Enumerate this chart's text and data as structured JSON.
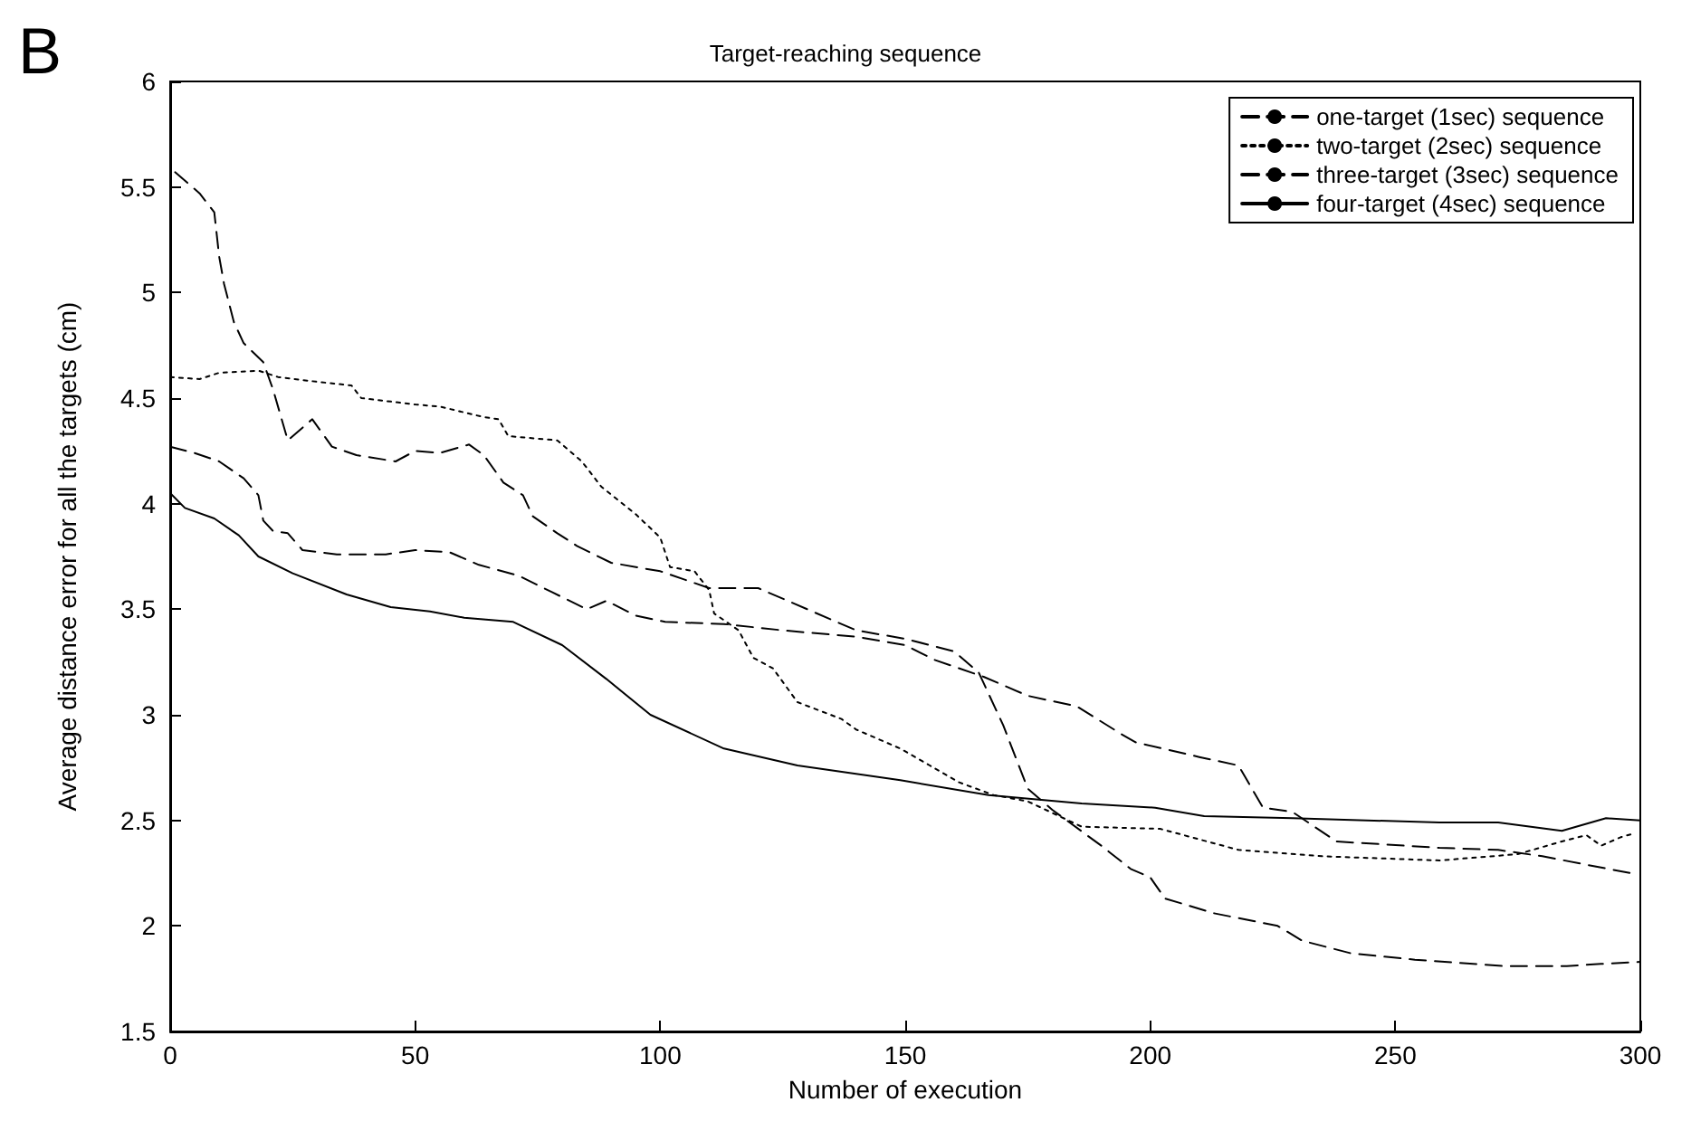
{
  "chart_data": {
    "type": "line",
    "title": "Target-reaching sequence",
    "xlabel": "Number of execution",
    "ylabel": "Average distance error for all the targets (cm)",
    "annotations": [
      "B"
    ],
    "xlim": [
      0,
      300
    ],
    "xticks": [
      0,
      50,
      100,
      150,
      200,
      250,
      300
    ],
    "ylim": [
      1.5,
      6
    ],
    "yticks": [
      1.5,
      2,
      2.5,
      3,
      3.5,
      4,
      4.5,
      5,
      5.5,
      6
    ],
    "legend": "top right",
    "grid": false,
    "marker": "none",
    "series": [
      {
        "name": "one-target (1sec) sequence",
        "color": "#000000",
        "line_style": "dashed",
        "x": [
          1,
          6,
          9,
          10,
          11,
          13,
          15,
          19,
          21,
          24,
          29,
          33,
          38,
          46,
          50,
          55,
          61,
          64,
          68,
          72,
          74,
          79,
          83,
          90,
          100,
          110,
          120,
          130,
          140,
          150,
          160,
          165,
          170,
          175,
          180,
          190,
          196,
          200,
          203,
          213,
          226,
          231,
          241,
          254,
          272,
          285,
          292,
          300
        ],
        "values": [
          5.57,
          5.47,
          5.38,
          5.17,
          5.04,
          4.86,
          4.76,
          4.67,
          4.54,
          4.3,
          4.4,
          4.27,
          4.23,
          4.2,
          4.25,
          4.24,
          4.28,
          4.23,
          4.1,
          4.04,
          3.94,
          3.86,
          3.8,
          3.72,
          3.68,
          3.6,
          3.6,
          3.5,
          3.4,
          3.36,
          3.3,
          3.2,
          2.95,
          2.65,
          2.55,
          2.38,
          2.27,
          2.23,
          2.13,
          2.06,
          2.0,
          1.93,
          1.87,
          1.84,
          1.81,
          1.81,
          1.82,
          1.83
        ]
      },
      {
        "name": "two-target (2sec) sequence",
        "color": "#000000",
        "line_style": "dotted",
        "x": [
          0,
          6,
          10,
          18,
          22,
          29,
          37,
          39,
          50,
          55,
          64,
          67,
          69,
          79,
          84,
          88,
          95,
          100,
          102,
          107,
          110,
          111,
          116,
          119,
          123,
          128,
          137,
          140,
          149,
          155,
          161,
          168,
          175,
          186,
          202,
          218,
          235,
          259,
          275,
          284,
          289,
          292,
          296,
          299
        ],
        "values": [
          4.6,
          4.59,
          4.62,
          4.63,
          4.6,
          4.58,
          4.56,
          4.5,
          4.47,
          4.46,
          4.41,
          4.4,
          4.32,
          4.3,
          4.2,
          4.08,
          3.95,
          3.84,
          3.7,
          3.68,
          3.59,
          3.48,
          3.4,
          3.27,
          3.22,
          3.06,
          2.98,
          2.93,
          2.84,
          2.76,
          2.68,
          2.62,
          2.59,
          2.47,
          2.46,
          2.36,
          2.33,
          2.31,
          2.34,
          2.4,
          2.43,
          2.38,
          2.42,
          2.44
        ]
      },
      {
        "name": "three-target (3sec) sequence",
        "color": "#000000",
        "line_style": "dashed",
        "x": [
          0,
          5,
          10,
          15,
          18,
          19,
          21,
          24,
          27,
          34,
          44,
          50,
          57,
          63,
          71,
          78,
          85,
          89,
          95,
          101,
          113,
          125,
          140,
          150,
          156,
          166,
          175,
          185,
          194,
          197,
          210,
          218,
          223,
          229,
          238,
          259,
          271,
          280,
          289,
          298
        ],
        "values": [
          4.27,
          4.24,
          4.2,
          4.12,
          4.04,
          3.92,
          3.87,
          3.86,
          3.78,
          3.76,
          3.76,
          3.78,
          3.77,
          3.71,
          3.66,
          3.58,
          3.5,
          3.54,
          3.47,
          3.44,
          3.43,
          3.4,
          3.37,
          3.33,
          3.26,
          3.18,
          3.09,
          3.04,
          2.91,
          2.87,
          2.8,
          2.76,
          2.56,
          2.54,
          2.4,
          2.37,
          2.36,
          2.33,
          2.29,
          2.25
        ]
      },
      {
        "name": "four-target (4sec) sequence",
        "color": "#000000",
        "line_style": "solid",
        "x": [
          0,
          3,
          9,
          14,
          18,
          25,
          36,
          45,
          53,
          60,
          70,
          80,
          89,
          98,
          113,
          128,
          149,
          167,
          186,
          201,
          211,
          229,
          259,
          271,
          284,
          293,
          300
        ],
        "values": [
          4.05,
          3.98,
          3.93,
          3.85,
          3.75,
          3.67,
          3.57,
          3.51,
          3.49,
          3.46,
          3.44,
          3.33,
          3.17,
          3.0,
          2.84,
          2.76,
          2.69,
          2.62,
          2.58,
          2.56,
          2.52,
          2.51,
          2.49,
          2.49,
          2.45,
          2.51,
          2.5
        ]
      }
    ]
  }
}
